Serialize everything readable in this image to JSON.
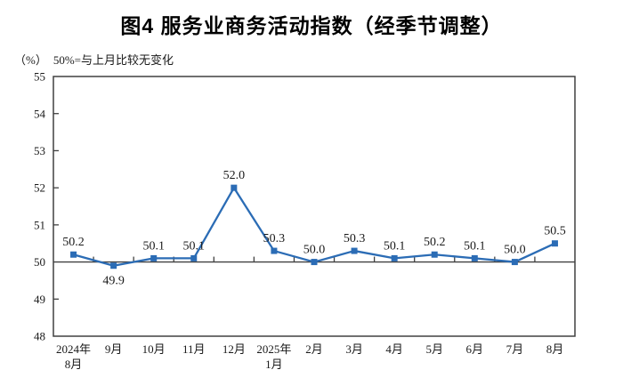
{
  "chart_data": {
    "type": "line",
    "title": "图4 服务业商务活动指数（经季节调整）",
    "unit_label": "（%）",
    "reference_note": "50%=与上月比较无变化",
    "categories": [
      "2024年\n8月",
      "9月",
      "10月",
      "11月",
      "12月",
      "2025年\n1月",
      "2月",
      "3月",
      "4月",
      "5月",
      "6月",
      "7月",
      "8月"
    ],
    "series": [
      {
        "name": "服务业商务活动指数",
        "values": [
          50.2,
          49.9,
          50.1,
          50.1,
          52.0,
          50.3,
          50.0,
          50.3,
          50.1,
          50.2,
          50.1,
          50.0,
          50.5
        ],
        "labels": [
          "50.2",
          "49.9",
          "50.1",
          "50.1",
          "52.0",
          "50.3",
          "50.0",
          "50.3",
          "50.1",
          "50.2",
          "50.1",
          "50.0",
          "50.5"
        ]
      }
    ],
    "label_below_indices": [
      1
    ],
    "ylim": [
      48,
      55
    ],
    "yticks": [
      48,
      49,
      50,
      51,
      52,
      53,
      54,
      55
    ],
    "x_axis_crosses_at": 50,
    "grid": false,
    "legend": false,
    "colors": {
      "line": "#2B6CB5",
      "marker": "#2B6CB5",
      "axis": "#404040",
      "text": "#1a1a1a"
    }
  }
}
